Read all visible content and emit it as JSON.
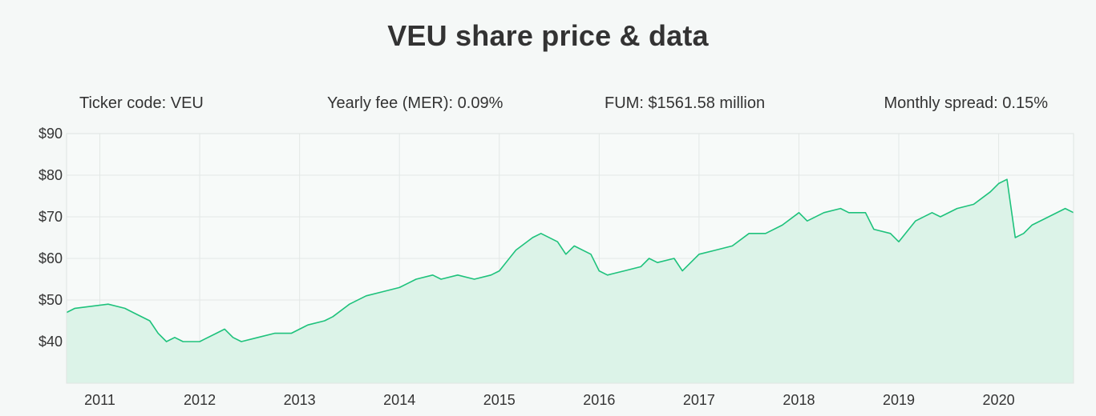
{
  "title": "VEU share price & data",
  "stats": {
    "ticker": "Ticker code: VEU",
    "fee": "Yearly fee (MER): 0.09%",
    "fum": "FUM: $1561.58 million",
    "spread": "Monthly spread: 0.15%"
  },
  "colors": {
    "line": "#1ec27c",
    "fill": "#dcf3e8",
    "grid": "#e3e8e6",
    "background": "#f5f8f7"
  },
  "chart_data": {
    "type": "area",
    "title": "",
    "xlabel": "",
    "ylabel": "",
    "x_ticks": [
      "2011",
      "2012",
      "2013",
      "2014",
      "2015",
      "2016",
      "2017",
      "2018",
      "2019",
      "2020"
    ],
    "y_ticks": [
      "$90",
      "$80",
      "$70",
      "$60",
      "$50",
      "$40"
    ],
    "y_tick_values": [
      90,
      80,
      70,
      60,
      50,
      40
    ],
    "xlim": [
      "2010-09",
      "2020-10"
    ],
    "ylim": [
      30,
      90
    ],
    "grid": true,
    "legend": "none",
    "series": [
      {
        "x": [
          "2010-09",
          "2010-10",
          "2010-12",
          "2011-02",
          "2011-04",
          "2011-05",
          "2011-07",
          "2011-08",
          "2011-09",
          "2011-10",
          "2011-11",
          "2011-12",
          "2012-01",
          "2012-03",
          "2012-04",
          "2012-05",
          "2012-06",
          "2012-08",
          "2012-10",
          "2012-12",
          "2013-02",
          "2013-04",
          "2013-05",
          "2013-07",
          "2013-09",
          "2013-11",
          "2014-01",
          "2014-03",
          "2014-05",
          "2014-06",
          "2014-08",
          "2014-10",
          "2014-12",
          "2015-01",
          "2015-03",
          "2015-05",
          "2015-06",
          "2015-08",
          "2015-09",
          "2015-10",
          "2015-12",
          "2016-01",
          "2016-02",
          "2016-04",
          "2016-06",
          "2016-07",
          "2016-08",
          "2016-10",
          "2016-11",
          "2017-01",
          "2017-03",
          "2017-05",
          "2017-07",
          "2017-09",
          "2017-11",
          "2018-01",
          "2018-02",
          "2018-04",
          "2018-06",
          "2018-07",
          "2018-09",
          "2018-10",
          "2018-12",
          "2019-01",
          "2019-03",
          "2019-05",
          "2019-06",
          "2019-08",
          "2019-10",
          "2019-12",
          "2020-01",
          "2020-02",
          "2020-03",
          "2020-04",
          "2020-05",
          "2020-07",
          "2020-09",
          "2020-10"
        ],
        "values": [
          47,
          48,
          48.5,
          49,
          48,
          47,
          45,
          42,
          40,
          41,
          40,
          40,
          40,
          42,
          43,
          41,
          40,
          41,
          42,
          42,
          44,
          45,
          46,
          49,
          51,
          52,
          53,
          55,
          56,
          55,
          56,
          55,
          56,
          57,
          62,
          65,
          66,
          64,
          61,
          63,
          61,
          57,
          56,
          57,
          58,
          60,
          59,
          60,
          57,
          61,
          62,
          63,
          66,
          66,
          68,
          71,
          69,
          71,
          72,
          71,
          71,
          67,
          66,
          64,
          69,
          71,
          70,
          72,
          73,
          76,
          78,
          79,
          65,
          66,
          68,
          70,
          72,
          71
        ]
      }
    ]
  }
}
